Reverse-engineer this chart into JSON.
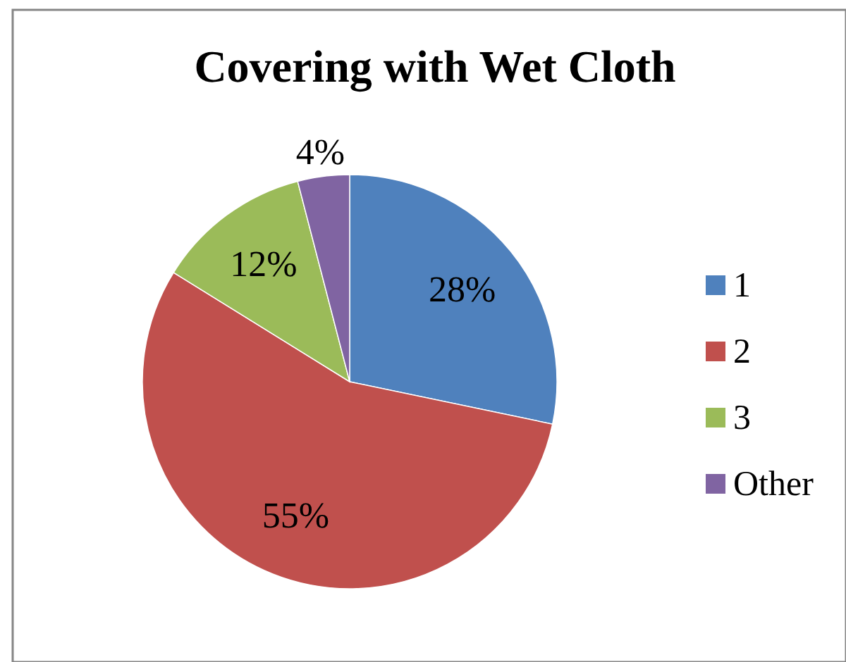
{
  "chart_data": {
    "type": "pie",
    "title": "Covering with Wet Cloth",
    "categories": [
      "1",
      "2",
      "3",
      "Other"
    ],
    "values": [
      28,
      55,
      12,
      4
    ],
    "colors": [
      "#4f81bd",
      "#c0504d",
      "#9bbb59",
      "#8064a2"
    ],
    "value_labels": [
      "28%",
      "55%",
      "12%",
      "4%"
    ],
    "legend": "right"
  }
}
